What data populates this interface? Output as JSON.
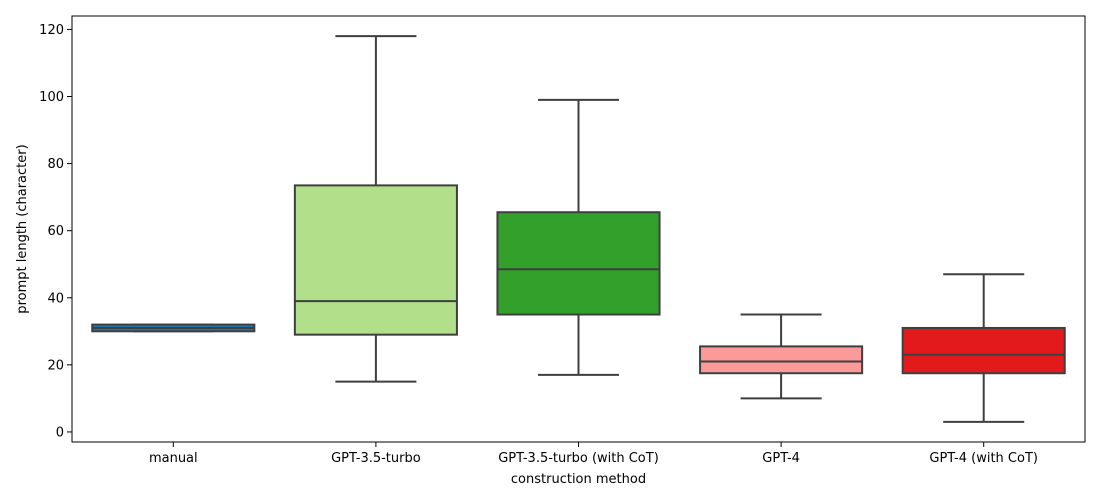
{
  "chart_data": {
    "type": "box",
    "title": "",
    "xlabel": "construction method",
    "ylabel": "prompt length (character)",
    "ylim": [
      -3,
      124
    ],
    "yticks": [
      0,
      20,
      40,
      60,
      80,
      100,
      120
    ],
    "grid": false,
    "legend": "none",
    "categories": [
      "manual",
      "GPT-3.5-turbo",
      "GPT-3.5-turbo (with CoT)",
      "GPT-4",
      "GPT-4 (with CoT)"
    ],
    "boxes": [
      {
        "category": "manual",
        "whisker_low": 30,
        "q1": 30,
        "median": 31,
        "q3": 32,
        "whisker_high": 32,
        "color": "#1f78b4"
      },
      {
        "category": "GPT-3.5-turbo",
        "whisker_low": 15,
        "q1": 29,
        "median": 39,
        "q3": 73.5,
        "whisker_high": 118,
        "color": "#b2df8a"
      },
      {
        "category": "GPT-3.5-turbo (with CoT)",
        "whisker_low": 17,
        "q1": 35,
        "median": 48.5,
        "q3": 65.5,
        "whisker_high": 99,
        "color": "#33a02c"
      },
      {
        "category": "GPT-4",
        "whisker_low": 10,
        "q1": 17.5,
        "median": 21,
        "q3": 25.5,
        "whisker_high": 35,
        "color": "#fb9a99"
      },
      {
        "category": "GPT-4 (with CoT)",
        "whisker_low": 3,
        "q1": 17.5,
        "median": 23,
        "q3": 31,
        "whisker_high": 47,
        "color": "#e31a1c"
      }
    ],
    "line_color": "#3f3f3f"
  }
}
